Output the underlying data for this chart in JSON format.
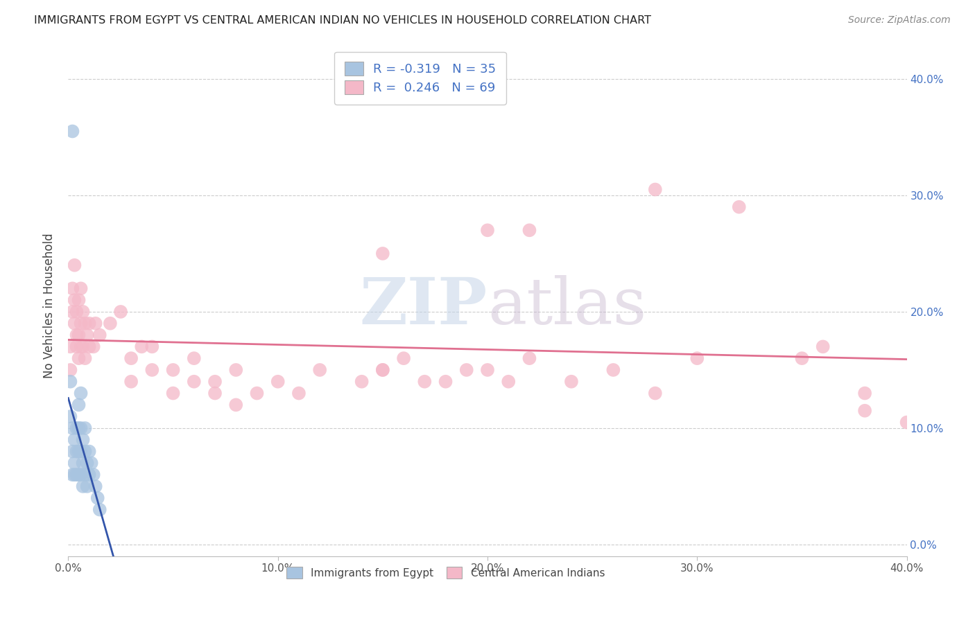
{
  "title": "IMMIGRANTS FROM EGYPT VS CENTRAL AMERICAN INDIAN NO VEHICLES IN HOUSEHOLD CORRELATION CHART",
  "source": "Source: ZipAtlas.com",
  "ylabel": "No Vehicles in Household",
  "xlim": [
    0.0,
    0.4
  ],
  "ylim": [
    -0.01,
    0.42
  ],
  "color_blue": "#a8c4e0",
  "color_pink": "#f4b8c8",
  "line_blue": "#3355aa",
  "line_pink": "#e07090",
  "blue_x": [
    0.001,
    0.001,
    0.002,
    0.002,
    0.002,
    0.003,
    0.003,
    0.003,
    0.004,
    0.004,
    0.004,
    0.005,
    0.005,
    0.005,
    0.005,
    0.006,
    0.006,
    0.006,
    0.006,
    0.007,
    0.007,
    0.007,
    0.008,
    0.008,
    0.008,
    0.009,
    0.009,
    0.01,
    0.01,
    0.011,
    0.012,
    0.013,
    0.014,
    0.015,
    0.002
  ],
  "blue_y": [
    0.14,
    0.11,
    0.1,
    0.08,
    0.06,
    0.09,
    0.07,
    0.06,
    0.1,
    0.08,
    0.06,
    0.12,
    0.1,
    0.08,
    0.06,
    0.13,
    0.1,
    0.08,
    0.06,
    0.09,
    0.07,
    0.05,
    0.1,
    0.08,
    0.06,
    0.07,
    0.05,
    0.08,
    0.06,
    0.07,
    0.06,
    0.05,
    0.04,
    0.03,
    0.355
  ],
  "pink_x": [
    0.001,
    0.001,
    0.002,
    0.002,
    0.003,
    0.003,
    0.003,
    0.004,
    0.004,
    0.004,
    0.005,
    0.005,
    0.005,
    0.006,
    0.006,
    0.006,
    0.007,
    0.007,
    0.008,
    0.008,
    0.009,
    0.01,
    0.01,
    0.012,
    0.013,
    0.015,
    0.02,
    0.025,
    0.03,
    0.035,
    0.04,
    0.05,
    0.06,
    0.07,
    0.08,
    0.09,
    0.1,
    0.11,
    0.12,
    0.14,
    0.15,
    0.16,
    0.18,
    0.2,
    0.22,
    0.24,
    0.26,
    0.28,
    0.03,
    0.04,
    0.05,
    0.06,
    0.07,
    0.08,
    0.15,
    0.17,
    0.19,
    0.21,
    0.35,
    0.38,
    0.4,
    0.32,
    0.28,
    0.36,
    0.15,
    0.2,
    0.22,
    0.3,
    0.38
  ],
  "pink_y": [
    0.17,
    0.15,
    0.2,
    0.22,
    0.24,
    0.21,
    0.19,
    0.17,
    0.2,
    0.18,
    0.21,
    0.18,
    0.16,
    0.22,
    0.19,
    0.17,
    0.2,
    0.17,
    0.19,
    0.16,
    0.18,
    0.19,
    0.17,
    0.17,
    0.19,
    0.18,
    0.19,
    0.2,
    0.16,
    0.17,
    0.17,
    0.15,
    0.16,
    0.14,
    0.15,
    0.13,
    0.14,
    0.13,
    0.15,
    0.14,
    0.15,
    0.16,
    0.14,
    0.15,
    0.16,
    0.14,
    0.15,
    0.13,
    0.14,
    0.15,
    0.13,
    0.14,
    0.13,
    0.12,
    0.15,
    0.14,
    0.15,
    0.14,
    0.16,
    0.115,
    0.105,
    0.29,
    0.305,
    0.17,
    0.25,
    0.27,
    0.27,
    0.16,
    0.13
  ]
}
